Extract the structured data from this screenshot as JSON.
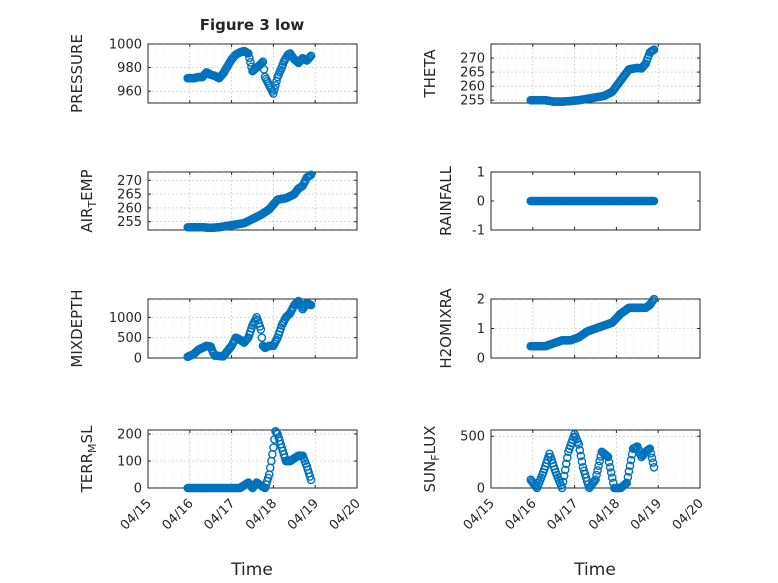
{
  "chart_data": [
    {
      "type": "scatter",
      "title": "Figure 3 low",
      "ylabel": "PRESSURE",
      "ylim": [
        950,
        1000
      ],
      "yticks": [
        960,
        980,
        1000
      ],
      "xlim": [
        0,
        5
      ],
      "xticks": [
        "04/15",
        "04/16",
        "04/17",
        "04/18",
        "04/19",
        "04/20"
      ],
      "show_xticks": false,
      "grid": true,
      "marker_color": "#0072bd",
      "x": [
        0.95,
        1.0,
        1.1,
        1.2,
        1.3,
        1.4,
        1.5,
        1.6,
        1.7,
        1.8,
        1.9,
        2.0,
        2.1,
        2.2,
        2.3,
        2.4,
        2.5,
        2.6,
        2.7,
        2.75,
        2.8,
        2.9,
        3.0,
        3.1,
        3.2,
        3.25,
        3.3,
        3.35,
        3.4,
        3.5,
        3.6,
        3.7,
        3.8,
        3.9
      ],
      "y": [
        971,
        971,
        971,
        972,
        972,
        976,
        974,
        973,
        971,
        975,
        981,
        987,
        991,
        993,
        994,
        992,
        977,
        980,
        983,
        985,
        972,
        965,
        958,
        972,
        980,
        985,
        988,
        991,
        992,
        987,
        984,
        988,
        986,
        990
      ]
    },
    {
      "type": "scatter",
      "title": "",
      "ylabel": "THETA",
      "ylim": [
        254,
        275
      ],
      "yticks": [
        255,
        260,
        265,
        270
      ],
      "xlim": [
        0,
        5
      ],
      "xticks": [
        "04/15",
        "04/16",
        "04/17",
        "04/18",
        "04/19",
        "04/20"
      ],
      "show_xticks": false,
      "grid": true,
      "marker_color": "#0072bd",
      "x": [
        0.95,
        1.1,
        1.3,
        1.5,
        1.7,
        1.9,
        2.1,
        2.3,
        2.5,
        2.7,
        2.9,
        3.1,
        3.3,
        3.5,
        3.6,
        3.7,
        3.8,
        3.9
      ],
      "y": [
        255,
        255,
        255,
        254.5,
        254.5,
        254.7,
        255,
        255.5,
        256,
        256.5,
        258,
        262,
        266,
        266.5,
        266.3,
        268,
        272,
        273
      ]
    },
    {
      "type": "scatter",
      "title": "",
      "ylabel": "AIR_TEMP",
      "ylim": [
        252,
        273
      ],
      "yticks": [
        255,
        260,
        265,
        270
      ],
      "xlim": [
        0,
        5
      ],
      "xticks": [
        "04/15",
        "04/16",
        "04/17",
        "04/18",
        "04/19",
        "04/20"
      ],
      "show_xticks": false,
      "grid": true,
      "marker_color": "#0072bd",
      "x": [
        0.95,
        1.1,
        1.3,
        1.5,
        1.7,
        1.9,
        2.1,
        2.3,
        2.5,
        2.7,
        2.9,
        3.1,
        3.3,
        3.5,
        3.6,
        3.7,
        3.8,
        3.9
      ],
      "y": [
        253,
        253,
        253,
        252.8,
        253,
        253.5,
        254,
        254.5,
        256,
        257.5,
        259.5,
        263,
        263.5,
        265,
        267,
        268,
        271,
        272
      ]
    },
    {
      "type": "scatter",
      "title": "",
      "ylabel": "RAINFALL",
      "ylim": [
        -1,
        1
      ],
      "yticks": [
        -1,
        0,
        1
      ],
      "xlim": [
        0,
        5
      ],
      "xticks": [
        "04/15",
        "04/16",
        "04/17",
        "04/18",
        "04/19",
        "04/20"
      ],
      "show_xticks": false,
      "grid": false,
      "marker_color": "#0072bd",
      "x": [
        0.95,
        1.2,
        1.4,
        1.6,
        1.8,
        2.0,
        2.2,
        2.4,
        2.6,
        2.8,
        3.0,
        3.2,
        3.4,
        3.6,
        3.8,
        3.9
      ],
      "y": [
        0,
        0,
        0,
        0,
        0,
        0,
        0,
        0,
        0,
        0,
        0,
        0,
        0,
        0,
        0,
        0
      ]
    },
    {
      "type": "scatter",
      "title": "",
      "ylabel": "MIXDEPTH",
      "ylim": [
        0,
        1450
      ],
      "yticks": [
        0,
        500,
        1000
      ],
      "xlim": [
        0,
        5
      ],
      "xticks": [
        "04/15",
        "04/16",
        "04/17",
        "04/18",
        "04/19",
        "04/20"
      ],
      "show_xticks": false,
      "grid": true,
      "marker_color": "#0072bd",
      "x": [
        0.95,
        1.1,
        1.2,
        1.3,
        1.4,
        1.5,
        1.55,
        1.6,
        1.8,
        2.0,
        2.1,
        2.2,
        2.3,
        2.4,
        2.5,
        2.6,
        2.7,
        2.75,
        2.8,
        2.9,
        3.0,
        3.1,
        3.2,
        3.3,
        3.4,
        3.5,
        3.6,
        3.7,
        3.8,
        3.9
      ],
      "y": [
        30,
        100,
        200,
        250,
        300,
        280,
        150,
        60,
        40,
        300,
        500,
        450,
        380,
        500,
        800,
        1000,
        700,
        300,
        250,
        300,
        300,
        500,
        800,
        1000,
        1100,
        1300,
        1400,
        1200,
        1350,
        1300
      ]
    },
    {
      "type": "scatter",
      "title": "",
      "ylabel": "H2OMIXRA",
      "ylim": [
        0,
        2
      ],
      "yticks": [
        0,
        1,
        2
      ],
      "xlim": [
        0,
        5
      ],
      "xticks": [
        "04/15",
        "04/16",
        "04/17",
        "04/18",
        "04/19",
        "04/20"
      ],
      "show_xticks": false,
      "grid": true,
      "marker_color": "#0072bd",
      "x": [
        0.95,
        1.1,
        1.3,
        1.5,
        1.7,
        1.9,
        2.1,
        2.3,
        2.5,
        2.7,
        2.9,
        3.1,
        3.3,
        3.5,
        3.7,
        3.8,
        3.9
      ],
      "y": [
        0.4,
        0.4,
        0.4,
        0.5,
        0.6,
        0.6,
        0.7,
        0.9,
        1.0,
        1.1,
        1.2,
        1.5,
        1.7,
        1.7,
        1.7,
        1.8,
        2.0
      ]
    },
    {
      "type": "scatter",
      "title": "",
      "ylabel": "TERR_MSL",
      "ylim": [
        0,
        215
      ],
      "yticks": [
        0,
        100,
        200
      ],
      "xlim": [
        0,
        5
      ],
      "xticks": [
        "04/15",
        "04/16",
        "04/17",
        "04/18",
        "04/19",
        "04/20"
      ],
      "show_xticks": true,
      "grid": true,
      "marker_color": "#0072bd",
      "x": [
        0.95,
        1.2,
        1.4,
        1.6,
        1.8,
        2.0,
        2.2,
        2.4,
        2.5,
        2.6,
        2.8,
        2.9,
        3.0,
        3.05,
        3.1,
        3.2,
        3.3,
        3.4,
        3.5,
        3.6,
        3.7,
        3.8,
        3.9
      ],
      "y": [
        0,
        0,
        0,
        0,
        0,
        0,
        0,
        20,
        0,
        20,
        0,
        50,
        150,
        210,
        200,
        150,
        100,
        100,
        110,
        120,
        120,
        80,
        30
      ]
    },
    {
      "type": "scatter",
      "title": "",
      "ylabel": "SUN_FLUX",
      "ylim": [
        0,
        560
      ],
      "yticks": [
        0,
        500
      ],
      "xlim": [
        0,
        5
      ],
      "xticks": [
        "04/15",
        "04/16",
        "04/17",
        "04/18",
        "04/19",
        "04/20"
      ],
      "show_xticks": true,
      "grid": true,
      "marker_color": "#0072bd",
      "x": [
        0.95,
        1.1,
        1.25,
        1.4,
        1.55,
        1.7,
        1.85,
        2.0,
        2.1,
        2.2,
        2.35,
        2.5,
        2.65,
        2.8,
        2.95,
        3.1,
        3.25,
        3.4,
        3.5,
        3.6,
        3.7,
        3.8,
        3.9
      ],
      "y": [
        80,
        0,
        150,
        330,
        150,
        0,
        350,
        520,
        420,
        200,
        0,
        80,
        350,
        300,
        0,
        0,
        50,
        380,
        400,
        300,
        350,
        380,
        200
      ]
    }
  ],
  "xlabel_left": "Time",
  "xlabel_right": "Time"
}
